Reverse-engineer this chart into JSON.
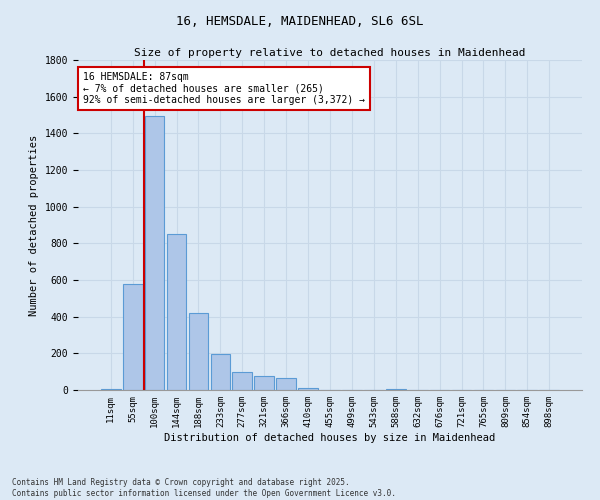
{
  "title1": "16, HEMSDALE, MAIDENHEAD, SL6 6SL",
  "title2": "Size of property relative to detached houses in Maidenhead",
  "xlabel": "Distribution of detached houses by size in Maidenhead",
  "ylabel": "Number of detached properties",
  "categories": [
    "11sqm",
    "55sqm",
    "100sqm",
    "144sqm",
    "188sqm",
    "233sqm",
    "277sqm",
    "321sqm",
    "366sqm",
    "410sqm",
    "455sqm",
    "499sqm",
    "543sqm",
    "588sqm",
    "632sqm",
    "676sqm",
    "721sqm",
    "765sqm",
    "809sqm",
    "854sqm",
    "898sqm"
  ],
  "values": [
    5,
    578,
    1495,
    853,
    418,
    196,
    100,
    75,
    65,
    10,
    0,
    0,
    0,
    3,
    0,
    2,
    0,
    0,
    0,
    0,
    0
  ],
  "bar_color": "#aec6e8",
  "bar_edge_color": "#5b9bd5",
  "grid_color": "#c8d8e8",
  "bg_color": "#dce9f5",
  "annotation_text": "16 HEMSDALE: 87sqm\n← 7% of detached houses are smaller (265)\n92% of semi-detached houses are larger (3,372) →",
  "annotation_box_color": "#ffffff",
  "annotation_box_edge": "#cc0000",
  "vline_color": "#cc0000",
  "footnote": "Contains HM Land Registry data © Crown copyright and database right 2025.\nContains public sector information licensed under the Open Government Licence v3.0.",
  "ylim": [
    0,
    1800
  ],
  "yticks": [
    0,
    200,
    400,
    600,
    800,
    1000,
    1200,
    1400,
    1600,
    1800
  ]
}
